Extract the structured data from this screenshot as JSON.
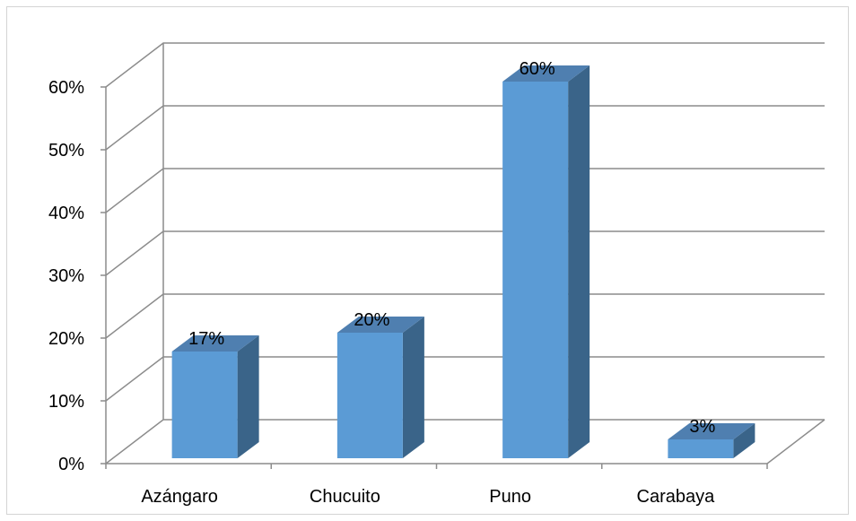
{
  "chart_data": {
    "type": "bar",
    "categories": [
      "Azángaro",
      "Chucuito",
      "Puno",
      "Carabaya"
    ],
    "values": [
      17,
      20,
      60,
      3
    ],
    "data_labels": [
      "17%",
      "20%",
      "60%",
      "3%"
    ],
    "yticks": [
      "0%",
      "10%",
      "20%",
      "30%",
      "40%",
      "50%",
      "60%"
    ],
    "ylim": [
      0,
      60
    ],
    "grid": true,
    "legend": "none",
    "colors": {
      "bar_front": "#5b9bd5",
      "bar_side": "#3a6489",
      "bar_top": "#4f7fb0",
      "grid": "#8c8c8c"
    }
  }
}
